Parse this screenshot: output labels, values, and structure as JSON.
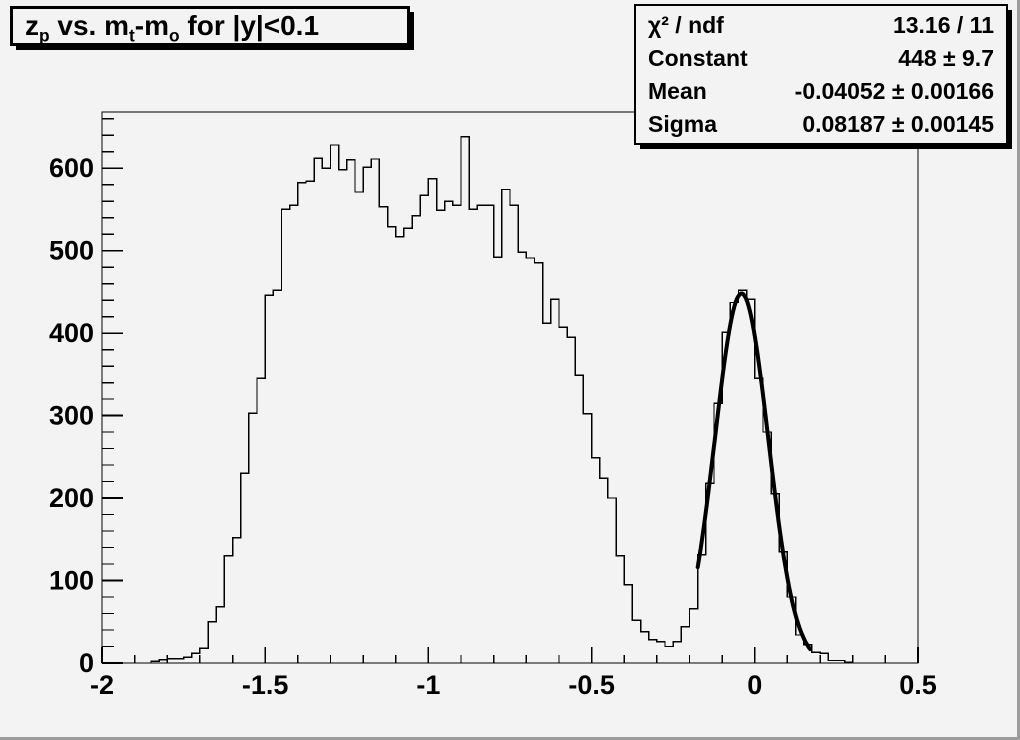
{
  "window": {
    "background": "#f2f3f2",
    "bevel_color": "#9c9c9c",
    "line_color": "#000000"
  },
  "title_box": {
    "plain": "z_p vs. m_t-m_o for |y|<0.1",
    "segments": [
      {
        "type": "text",
        "text": "z"
      },
      {
        "type": "sub",
        "text": "p"
      },
      {
        "type": "text",
        "text": " vs. m"
      },
      {
        "type": "sub",
        "text": "t"
      },
      {
        "type": "text",
        "text": "-m"
      },
      {
        "type": "sub",
        "text": "o"
      },
      {
        "type": "text",
        "text": " for |y|<0.1"
      }
    ]
  },
  "stats_box": {
    "rows": [
      {
        "label": "χ² / ndf",
        "value": "13.16 / 11"
      },
      {
        "label": "Constant",
        "value": "448 ± 9.7"
      },
      {
        "label": "Mean",
        "value": "-0.04052 ± 0.00166"
      },
      {
        "label": "Sigma",
        "value": "0.08187 ± 0.00145"
      }
    ]
  },
  "chart_data": {
    "type": "bar",
    "subtype": "step-histogram",
    "title": "z_p vs. m_t-m_o for |y|<0.1",
    "xlabel": "",
    "ylabel": "",
    "xlim": [
      -2,
      0.5
    ],
    "ylim": [
      0,
      668
    ],
    "grid": false,
    "legend": null,
    "bin_start": -2,
    "bin_width": 0.025,
    "values": [
      0,
      0,
      0,
      0,
      0,
      0,
      2,
      4,
      5,
      5,
      7,
      12,
      18,
      50,
      68,
      130,
      152,
      230,
      303,
      345,
      446,
      452,
      550,
      555,
      582,
      584,
      612,
      600,
      628,
      598,
      610,
      571,
      601,
      611,
      553,
      529,
      517,
      527,
      542,
      567,
      587,
      549,
      560,
      555,
      638,
      550,
      555,
      555,
      492,
      574,
      555,
      498,
      491,
      485,
      412,
      441,
      407,
      395,
      349,
      302,
      249,
      224,
      200,
      130,
      95,
      52,
      38,
      28,
      26,
      20,
      26,
      44,
      66,
      131,
      218,
      315,
      401,
      437,
      452,
      441,
      345,
      280,
      205,
      135,
      80,
      34,
      22,
      13,
      12,
      3,
      3,
      1,
      0,
      0,
      0,
      0,
      0,
      0,
      0,
      0
    ],
    "xticks": [
      -2,
      -1.5,
      -1,
      -0.5,
      0,
      0.5
    ],
    "xtick_labels": [
      "-2",
      "-1.5",
      "-1",
      "-0.5",
      "0",
      "0.5"
    ],
    "yticks": [
      0,
      100,
      200,
      300,
      400,
      500,
      600
    ],
    "ytick_labels": [
      "0",
      "100",
      "200",
      "300",
      "400",
      "500",
      "600"
    ],
    "x_minor_step": 0.1,
    "y_minor_step": 20,
    "histogram_color": "#000000",
    "fit_curve": {
      "shape": "gaussian",
      "constant": 448,
      "mean": -0.04052,
      "sigma": 0.08187,
      "x_range": [
        -0.175,
        0.172
      ],
      "line_width": 4,
      "color": "#000000"
    },
    "stats": {
      "chi2_ndf": "13.16 / 11",
      "constant": "448 ± 9.7",
      "mean": "-0.04052 ± 0.00166",
      "sigma": "0.08187 ± 0.00145"
    }
  }
}
